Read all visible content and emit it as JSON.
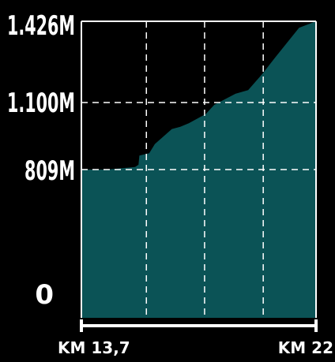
{
  "chart_data": {
    "type": "area",
    "x_start_label": "KM 13,7",
    "x_end_label": "KM 22",
    "x_range": [
      13.7,
      22
    ],
    "y_tick_labels": [
      "0",
      "809M",
      "1.100M",
      "1.426M"
    ],
    "y_ticks": [
      0,
      809,
      1100,
      1426
    ],
    "grid": true,
    "colors": {
      "fill": "#0b5356",
      "background": "#000000",
      "grid": "#ffffff",
      "text": "#ffffff"
    },
    "x": [
      13.7,
      14.6,
      15.6,
      15.72,
      15.75,
      16.1,
      16.3,
      16.9,
      17.2,
      17.5,
      18.1,
      18.4,
      19.15,
      19.6,
      20.1,
      20.55,
      21.4,
      22.0
    ],
    "y": [
      809,
      809,
      820,
      830,
      870,
      880,
      920,
      985,
      995,
      1010,
      1050,
      1090,
      1135,
      1150,
      1215,
      1280,
      1400,
      1426
    ]
  }
}
